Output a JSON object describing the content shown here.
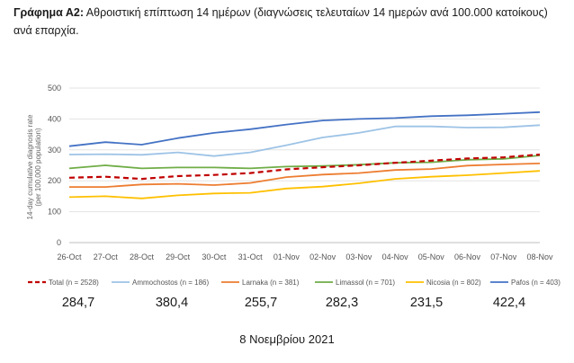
{
  "caption": {
    "prefix": "Γράφημα Α2:",
    "text": "Αθροιστική επίπτωση 14 ημέρων (διαγνώσεις τελευταίων 14 ημερών ανά 100.000 κατοίκους) ανά επαρχία."
  },
  "chart_data": {
    "type": "line",
    "ylabel": "14-day cumulative diagnosis rate (per 100,000 population)",
    "xlabel": "",
    "ylim": [
      0,
      500
    ],
    "yticks": [
      0,
      100,
      200,
      300,
      400,
      500
    ],
    "grid": true,
    "legend_position": "bottom",
    "categories": [
      "26-Oct",
      "27-Oct",
      "28-Oct",
      "29-Oct",
      "30-Oct",
      "31-Oct",
      "01-Nov",
      "02-Nov",
      "03-Nov",
      "04-Nov",
      "05-Nov",
      "06-Nov",
      "07-Nov",
      "08-Nov"
    ],
    "series": [
      {
        "name": "Total (n = 2528)",
        "color": "#c00000",
        "dashed": true,
        "values": [
          210,
          213,
          206,
          215,
          219,
          225,
          237,
          244,
          250,
          258,
          265,
          272,
          276,
          285
        ]
      },
      {
        "name": "Ammochostos (n = 186)",
        "color": "#9dc3e6",
        "dashed": false,
        "values": [
          285,
          286,
          284,
          292,
          280,
          292,
          315,
          340,
          355,
          376,
          376,
          372,
          373,
          380
        ]
      },
      {
        "name": "Larnaka (n = 381)",
        "color": "#ed7d31",
        "dashed": false,
        "values": [
          180,
          180,
          188,
          190,
          186,
          193,
          212,
          220,
          225,
          235,
          238,
          249,
          253,
          256
        ]
      },
      {
        "name": "Limassol (n = 701)",
        "color": "#70ad47",
        "dashed": false,
        "values": [
          240,
          250,
          240,
          243,
          243,
          240,
          246,
          248,
          252,
          258,
          260,
          268,
          271,
          282
        ]
      },
      {
        "name": "Nicosia (n = 802)",
        "color": "#ffc000",
        "dashed": false,
        "values": [
          147,
          150,
          143,
          153,
          159,
          161,
          175,
          181,
          192,
          206,
          213,
          218,
          225,
          232
        ]
      },
      {
        "name": "Pafos (n = 403)",
        "color": "#4472c4",
        "dashed": false,
        "values": [
          312,
          325,
          317,
          338,
          355,
          367,
          382,
          395,
          400,
          403,
          409,
          412,
          417,
          422
        ]
      }
    ]
  },
  "summary_values": [
    "284,7",
    "380,4",
    "255,7",
    "282,3",
    "231,5",
    "422,4"
  ],
  "date_label": "8 Νοεμβρίου 2021"
}
